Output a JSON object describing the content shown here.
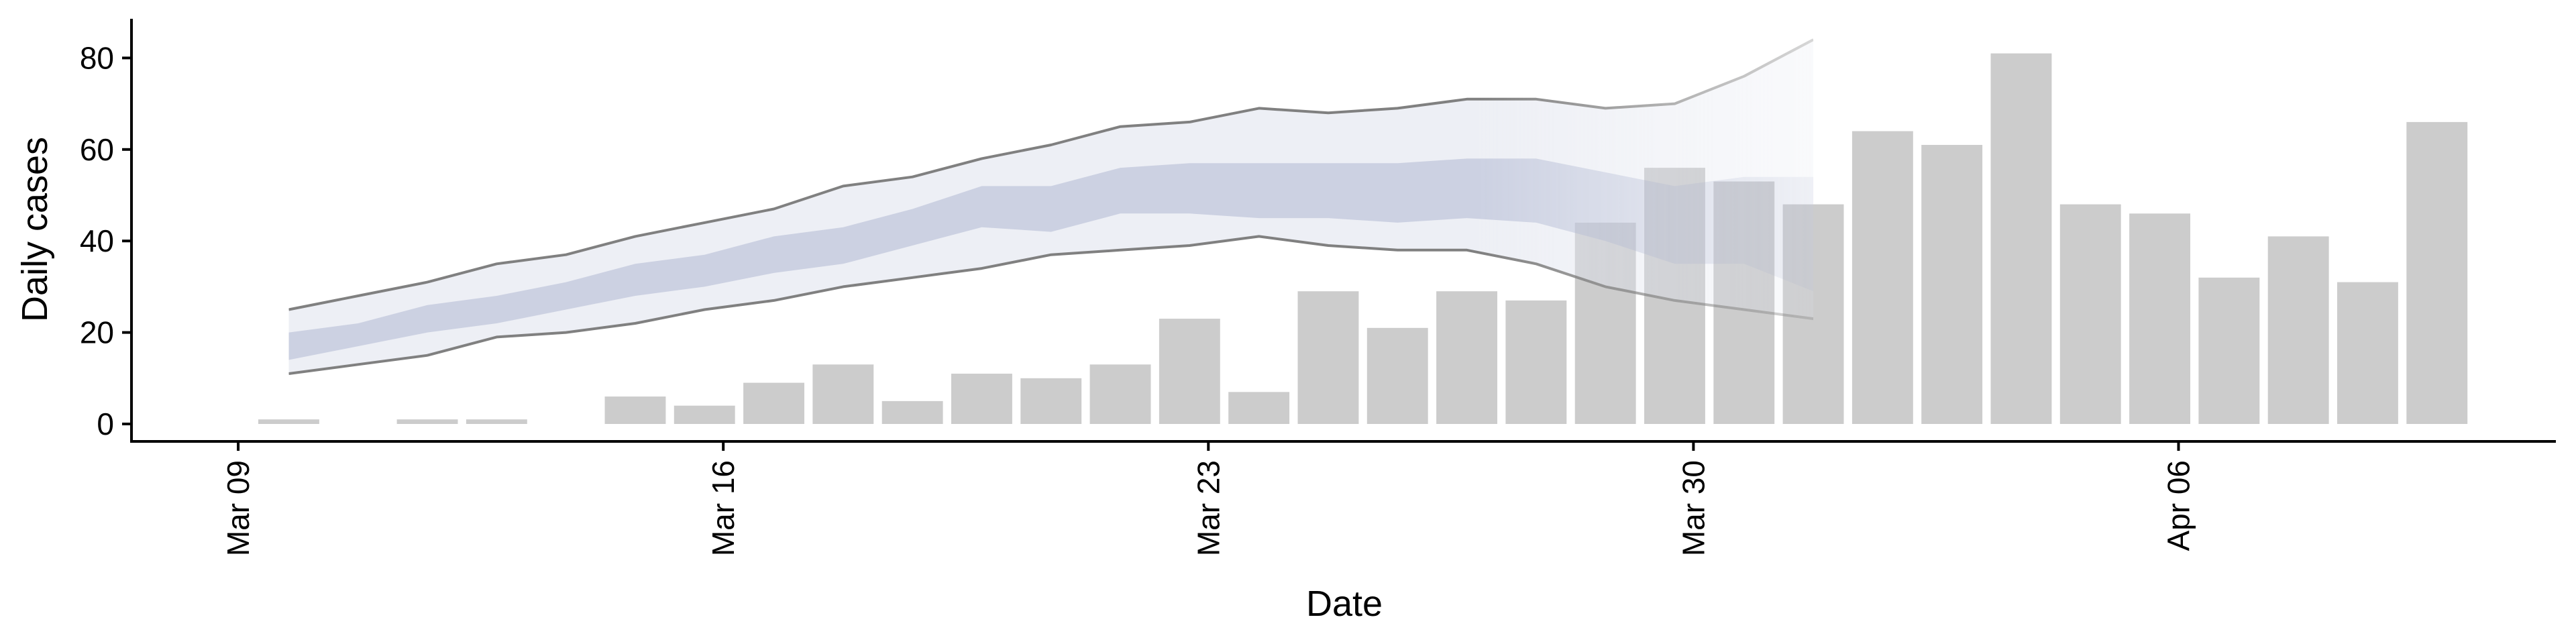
{
  "chart_data": {
    "type": "bar",
    "title": "",
    "xlabel": "Date",
    "ylabel": "Daily cases",
    "ylim": [
      0,
      85
    ],
    "yticks": [
      0,
      20,
      40,
      60,
      80
    ],
    "xticks": [
      {
        "date": "2020-03-09",
        "label": "Mar 09"
      },
      {
        "date": "2020-03-16",
        "label": "Mar 16"
      },
      {
        "date": "2020-03-23",
        "label": "Mar 23"
      },
      {
        "date": "2020-03-30",
        "label": "Mar 30"
      },
      {
        "date": "2020-04-06",
        "label": "Apr 06"
      }
    ],
    "xrange": [
      "2020-03-08",
      "2020-04-12"
    ],
    "grid": false,
    "legend": "none",
    "series": [
      {
        "type": "bar",
        "color": "#cccccc",
        "x": [
          "2020-03-10",
          "2020-03-11",
          "2020-03-12",
          "2020-03-13",
          "2020-03-14",
          "2020-03-15",
          "2020-03-16",
          "2020-03-17",
          "2020-03-18",
          "2020-03-19",
          "2020-03-20",
          "2020-03-21",
          "2020-03-22",
          "2020-03-23",
          "2020-03-24",
          "2020-03-25",
          "2020-03-26",
          "2020-03-27",
          "2020-03-28",
          "2020-03-29",
          "2020-03-30",
          "2020-03-31",
          "2020-04-01",
          "2020-04-02",
          "2020-04-03",
          "2020-04-04",
          "2020-04-05",
          "2020-04-06",
          "2020-04-07",
          "2020-04-08",
          "2020-04-09",
          "2020-04-10",
          "2020-04-11"
        ],
        "values": [
          1,
          0,
          1,
          1,
          0,
          6,
          4,
          9,
          13,
          5,
          11,
          10,
          13,
          23,
          7,
          29,
          21,
          29,
          27,
          44,
          56,
          53,
          48,
          64,
          61,
          81,
          48,
          46,
          32,
          41,
          31,
          66,
          0
        ]
      },
      {
        "type": "band",
        "color": "#dfe1ec",
        "x": [
          "2020-03-10",
          "2020-03-11",
          "2020-03-12",
          "2020-03-13",
          "2020-03-14",
          "2020-03-15",
          "2020-03-16",
          "2020-03-17",
          "2020-03-18",
          "2020-03-19",
          "2020-03-20",
          "2020-03-21",
          "2020-03-22",
          "2020-03-23",
          "2020-03-24",
          "2020-03-25",
          "2020-03-26",
          "2020-03-27",
          "2020-03-28",
          "2020-03-29",
          "2020-03-30",
          "2020-03-31",
          "2020-04-01"
        ],
        "lower": [
          11,
          13,
          15,
          19,
          20,
          22,
          25,
          27,
          30,
          32,
          34,
          37,
          38,
          39,
          41,
          39,
          38,
          38,
          35,
          30,
          27,
          25,
          23
        ],
        "upper": [
          25,
          28,
          31,
          35,
          37,
          41,
          44,
          47,
          52,
          54,
          58,
          61,
          65,
          66,
          69,
          68,
          69,
          71,
          71,
          69,
          70,
          76,
          84
        ]
      },
      {
        "type": "band",
        "color": "#bcc2d9",
        "x": [
          "2020-03-10",
          "2020-03-11",
          "2020-03-12",
          "2020-03-13",
          "2020-03-14",
          "2020-03-15",
          "2020-03-16",
          "2020-03-17",
          "2020-03-18",
          "2020-03-19",
          "2020-03-20",
          "2020-03-21",
          "2020-03-22",
          "2020-03-23",
          "2020-03-24",
          "2020-03-25",
          "2020-03-26",
          "2020-03-27",
          "2020-03-28",
          "2020-03-29",
          "2020-03-30",
          "2020-03-31",
          "2020-04-01"
        ],
        "lower": [
          14,
          17,
          20,
          22,
          25,
          28,
          30,
          33,
          35,
          39,
          43,
          42,
          46,
          46,
          45,
          45,
          44,
          45,
          44,
          40,
          35,
          35,
          29
        ],
        "upper": [
          20,
          22,
          26,
          28,
          31,
          35,
          37,
          41,
          43,
          47,
          52,
          52,
          56,
          57,
          57,
          57,
          57,
          58,
          58,
          55,
          52,
          54,
          54
        ]
      }
    ]
  }
}
